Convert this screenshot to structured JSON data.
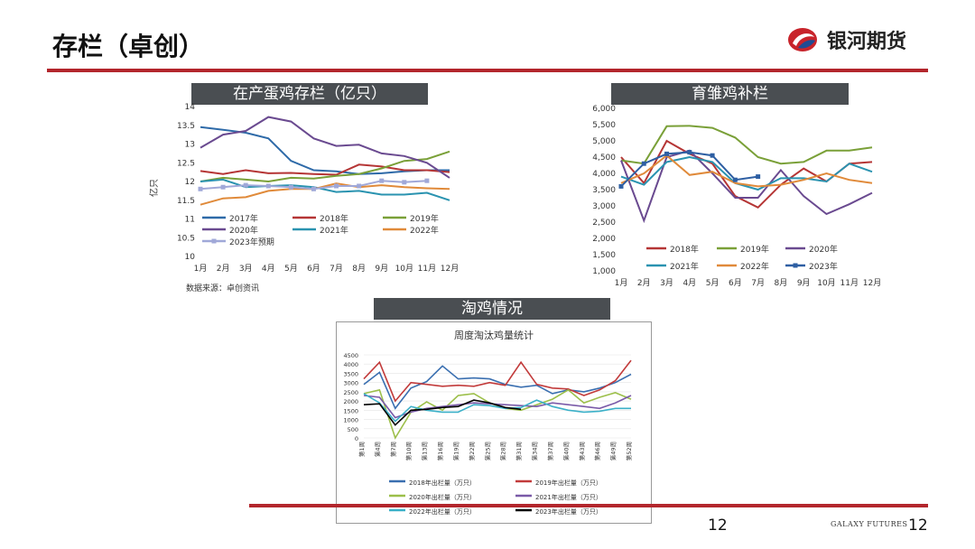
{
  "page": {
    "title": "存栏（卓创）",
    "logo_text": "银河期货",
    "page_number_center": "12",
    "page_number_right": "12",
    "footer_brand": "GALAXY FUTURES"
  },
  "banners": {
    "layer_inventory": "在产蛋鸡存栏（亿只）",
    "chick_replenish": "育雏鸡补栏",
    "culling": "淘鸡情况"
  },
  "source_note": "数据来源：卓创资讯",
  "chart_data": [
    {
      "id": "layer_inventory",
      "type": "line",
      "ylabel": "亿只",
      "ylim": [
        10,
        14
      ],
      "yticks": [
        "10",
        "10.5",
        "11",
        "11.5",
        "12",
        "12.5",
        "13",
        "13.5",
        "14"
      ],
      "categories": [
        "1月",
        "2月",
        "3月",
        "4月",
        "5月",
        "6月",
        "7月",
        "8月",
        "9月",
        "10月",
        "11月",
        "12月"
      ],
      "series": [
        {
          "name": "2017年",
          "color": "#2e6aa8",
          "values": [
            13.45,
            13.38,
            13.3,
            13.15,
            12.55,
            12.3,
            12.27,
            12.2,
            12.22,
            12.27,
            12.3,
            12.3
          ]
        },
        {
          "name": "2018年",
          "color": "#b53535",
          "values": [
            12.28,
            12.2,
            12.3,
            12.22,
            12.23,
            12.2,
            12.18,
            12.45,
            12.4,
            12.3,
            12.3,
            12.25
          ]
        },
        {
          "name": "2019年",
          "color": "#7aa038",
          "values": [
            12.0,
            12.1,
            12.05,
            12.0,
            12.1,
            12.08,
            12.15,
            12.2,
            12.35,
            12.55,
            12.6,
            12.8
          ]
        },
        {
          "name": "2020年",
          "color": "#6a4a90",
          "values": [
            12.9,
            13.25,
            13.35,
            13.72,
            13.6,
            13.15,
            12.95,
            12.98,
            12.75,
            12.68,
            12.5,
            12.1
          ]
        },
        {
          "name": "2021年",
          "color": "#2a93b0",
          "values": [
            12.0,
            12.05,
            11.85,
            11.88,
            11.9,
            11.85,
            11.72,
            11.75,
            11.65,
            11.65,
            11.7,
            11.5
          ]
        },
        {
          "name": "2022年",
          "color": "#e08a3a",
          "values": [
            11.38,
            11.55,
            11.58,
            11.75,
            11.8,
            11.8,
            11.95,
            11.85,
            11.9,
            11.85,
            11.82,
            11.8
          ]
        },
        {
          "name": "2023年预期",
          "color": "#a0a8d8",
          "marker": true,
          "values": [
            11.8,
            11.85,
            11.9,
            11.88,
            11.85,
            11.8,
            11.88,
            11.88,
            12.02,
            11.98,
            12.02,
            null
          ]
        }
      ]
    },
    {
      "id": "chick_replenish",
      "type": "line",
      "ylim": [
        1000,
        6000
      ],
      "yticks": [
        "1,000",
        "1,500",
        "2,000",
        "2,500",
        "3,000",
        "3,500",
        "4,000",
        "4,500",
        "5,000",
        "5,500",
        "6,000"
      ],
      "categories": [
        "1月",
        "2月",
        "3月",
        "4月",
        "5月",
        "6月",
        "7月",
        "8月",
        "9月",
        "10月",
        "11月",
        "12月"
      ],
      "series": [
        {
          "name": "2018年",
          "color": "#b53535",
          "values": [
            4500,
            3700,
            5000,
            4600,
            4300,
            3300,
            2950,
            3650,
            4150,
            3750,
            4300,
            4350
          ]
        },
        {
          "name": "2019年",
          "color": "#7aa038",
          "values": [
            4400,
            4300,
            5450,
            5460,
            5400,
            5100,
            4500,
            4300,
            4350,
            4700,
            4700,
            4800
          ]
        },
        {
          "name": "2020年",
          "color": "#6a4a90",
          "values": [
            4400,
            2550,
            4500,
            4700,
            4000,
            3250,
            3250,
            4100,
            3300,
            2750,
            3050,
            3400
          ]
        },
        {
          "name": "2021年",
          "color": "#2a93b0",
          "values": [
            3900,
            3650,
            4350,
            4500,
            4350,
            3700,
            3500,
            3850,
            3850,
            3750,
            4300,
            4050
          ]
        },
        {
          "name": "2022年",
          "color": "#e08a3a",
          "values": [
            3700,
            4000,
            4550,
            3950,
            4050,
            3700,
            3600,
            3650,
            3800,
            4000,
            3800,
            3700
          ]
        },
        {
          "name": "2023年",
          "color": "#2e5fa3",
          "marker": true,
          "values": [
            3600,
            4300,
            4600,
            4650,
            4550,
            3800,
            3900,
            null,
            null,
            null,
            null,
            null
          ]
        }
      ]
    },
    {
      "id": "culling",
      "type": "line",
      "title": "周度淘汰鸡量统计",
      "ylim": [
        0,
        4500
      ],
      "yticks": [
        "0",
        "500",
        "1000",
        "1500",
        "2000",
        "2500",
        "3000",
        "3500",
        "4000",
        "4500"
      ],
      "categories": [
        "第1周",
        "第4周",
        "第7周",
        "第10周",
        "第13周",
        "第16周",
        "第19周",
        "第22周",
        "第25周",
        "第28周",
        "第31周",
        "第34周",
        "第37周",
        "第40周",
        "第43周",
        "第46周",
        "第49周",
        "第52周"
      ],
      "series": [
        {
          "name": "2018年出栏量（万只）",
          "color": "#3a6fb0",
          "values": [
            2900,
            3550,
            1600,
            2700,
            3050,
            3900,
            3200,
            3250,
            3200,
            2900,
            2750,
            2850,
            2400,
            2600,
            2500,
            2700,
            3000,
            3450
          ]
        },
        {
          "name": "2019年出栏量（万只）",
          "color": "#c23b3b",
          "values": [
            3200,
            4100,
            2000,
            3000,
            2900,
            2800,
            2850,
            2800,
            3000,
            2850,
            4100,
            2900,
            2700,
            2650,
            2300,
            2600,
            3100,
            4200
          ]
        },
        {
          "name": "2020年出栏量（万只）",
          "color": "#9cbf4a",
          "values": [
            2400,
            2600,
            0,
            1400,
            1950,
            1500,
            2300,
            2400,
            1900,
            1600,
            1500,
            1800,
            2100,
            2600,
            1900,
            2200,
            2450,
            2100
          ]
        },
        {
          "name": "2021年出栏量（万只）",
          "color": "#7a5aa8",
          "values": [
            2300,
            2200,
            1100,
            1400,
            1600,
            1700,
            1800,
            1900,
            1850,
            1800,
            1750,
            1700,
            1900,
            1800,
            1700,
            1600,
            1900,
            2300
          ]
        },
        {
          "name": "2022年出栏量（万只）",
          "color": "#3bb0c8",
          "values": [
            2400,
            1900,
            900,
            1700,
            1500,
            1400,
            1400,
            1800,
            1750,
            1600,
            1650,
            2050,
            1700,
            1500,
            1400,
            1450,
            1600,
            1600
          ]
        },
        {
          "name": "2023年出栏量（万只）",
          "color": "#000000",
          "values": [
            1800,
            1850,
            700,
            1500,
            1550,
            1650,
            1700,
            2050,
            1900,
            1650,
            1550,
            null,
            null,
            null,
            null,
            null,
            null,
            null
          ]
        }
      ]
    }
  ]
}
